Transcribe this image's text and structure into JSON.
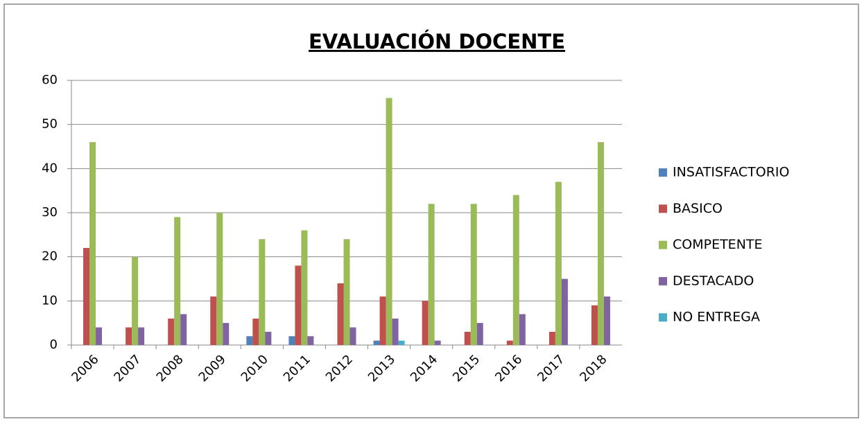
{
  "chart_data": {
    "type": "bar",
    "title": "EVALUACIÓN DOCENTE",
    "categories": [
      "2006",
      "2007",
      "2008",
      "2009",
      "2010",
      "2011",
      "2012",
      "2013",
      "2014",
      "2015",
      "2016",
      "2017",
      "2018"
    ],
    "series": [
      {
        "name": "INSATISFACTORIO",
        "color": "#4f81bd",
        "values": [
          0,
          0,
          0,
          0,
          2,
          2,
          0,
          1,
          0,
          0,
          0,
          0,
          0
        ]
      },
      {
        "name": "BASICO",
        "color": "#c0504d",
        "values": [
          22,
          4,
          6,
          11,
          6,
          18,
          14,
          11,
          10,
          3,
          1,
          3,
          9
        ]
      },
      {
        "name": "COMPETENTE",
        "color": "#9bbb59",
        "values": [
          46,
          20,
          29,
          30,
          24,
          26,
          24,
          56,
          32,
          32,
          34,
          37,
          46
        ]
      },
      {
        "name": "DESTACADO",
        "color": "#8064a2",
        "values": [
          4,
          4,
          7,
          5,
          3,
          2,
          4,
          6,
          1,
          5,
          7,
          15,
          11
        ]
      },
      {
        "name": "NO ENTREGA",
        "color": "#4bacc6",
        "values": [
          0,
          0,
          0,
          0,
          0,
          0,
          0,
          1,
          0,
          0,
          0,
          0,
          0
        ]
      }
    ],
    "ylim": [
      0,
      60
    ],
    "yticks": [
      0,
      10,
      20,
      30,
      40,
      50,
      60
    ],
    "grid": true,
    "legend": "right"
  }
}
